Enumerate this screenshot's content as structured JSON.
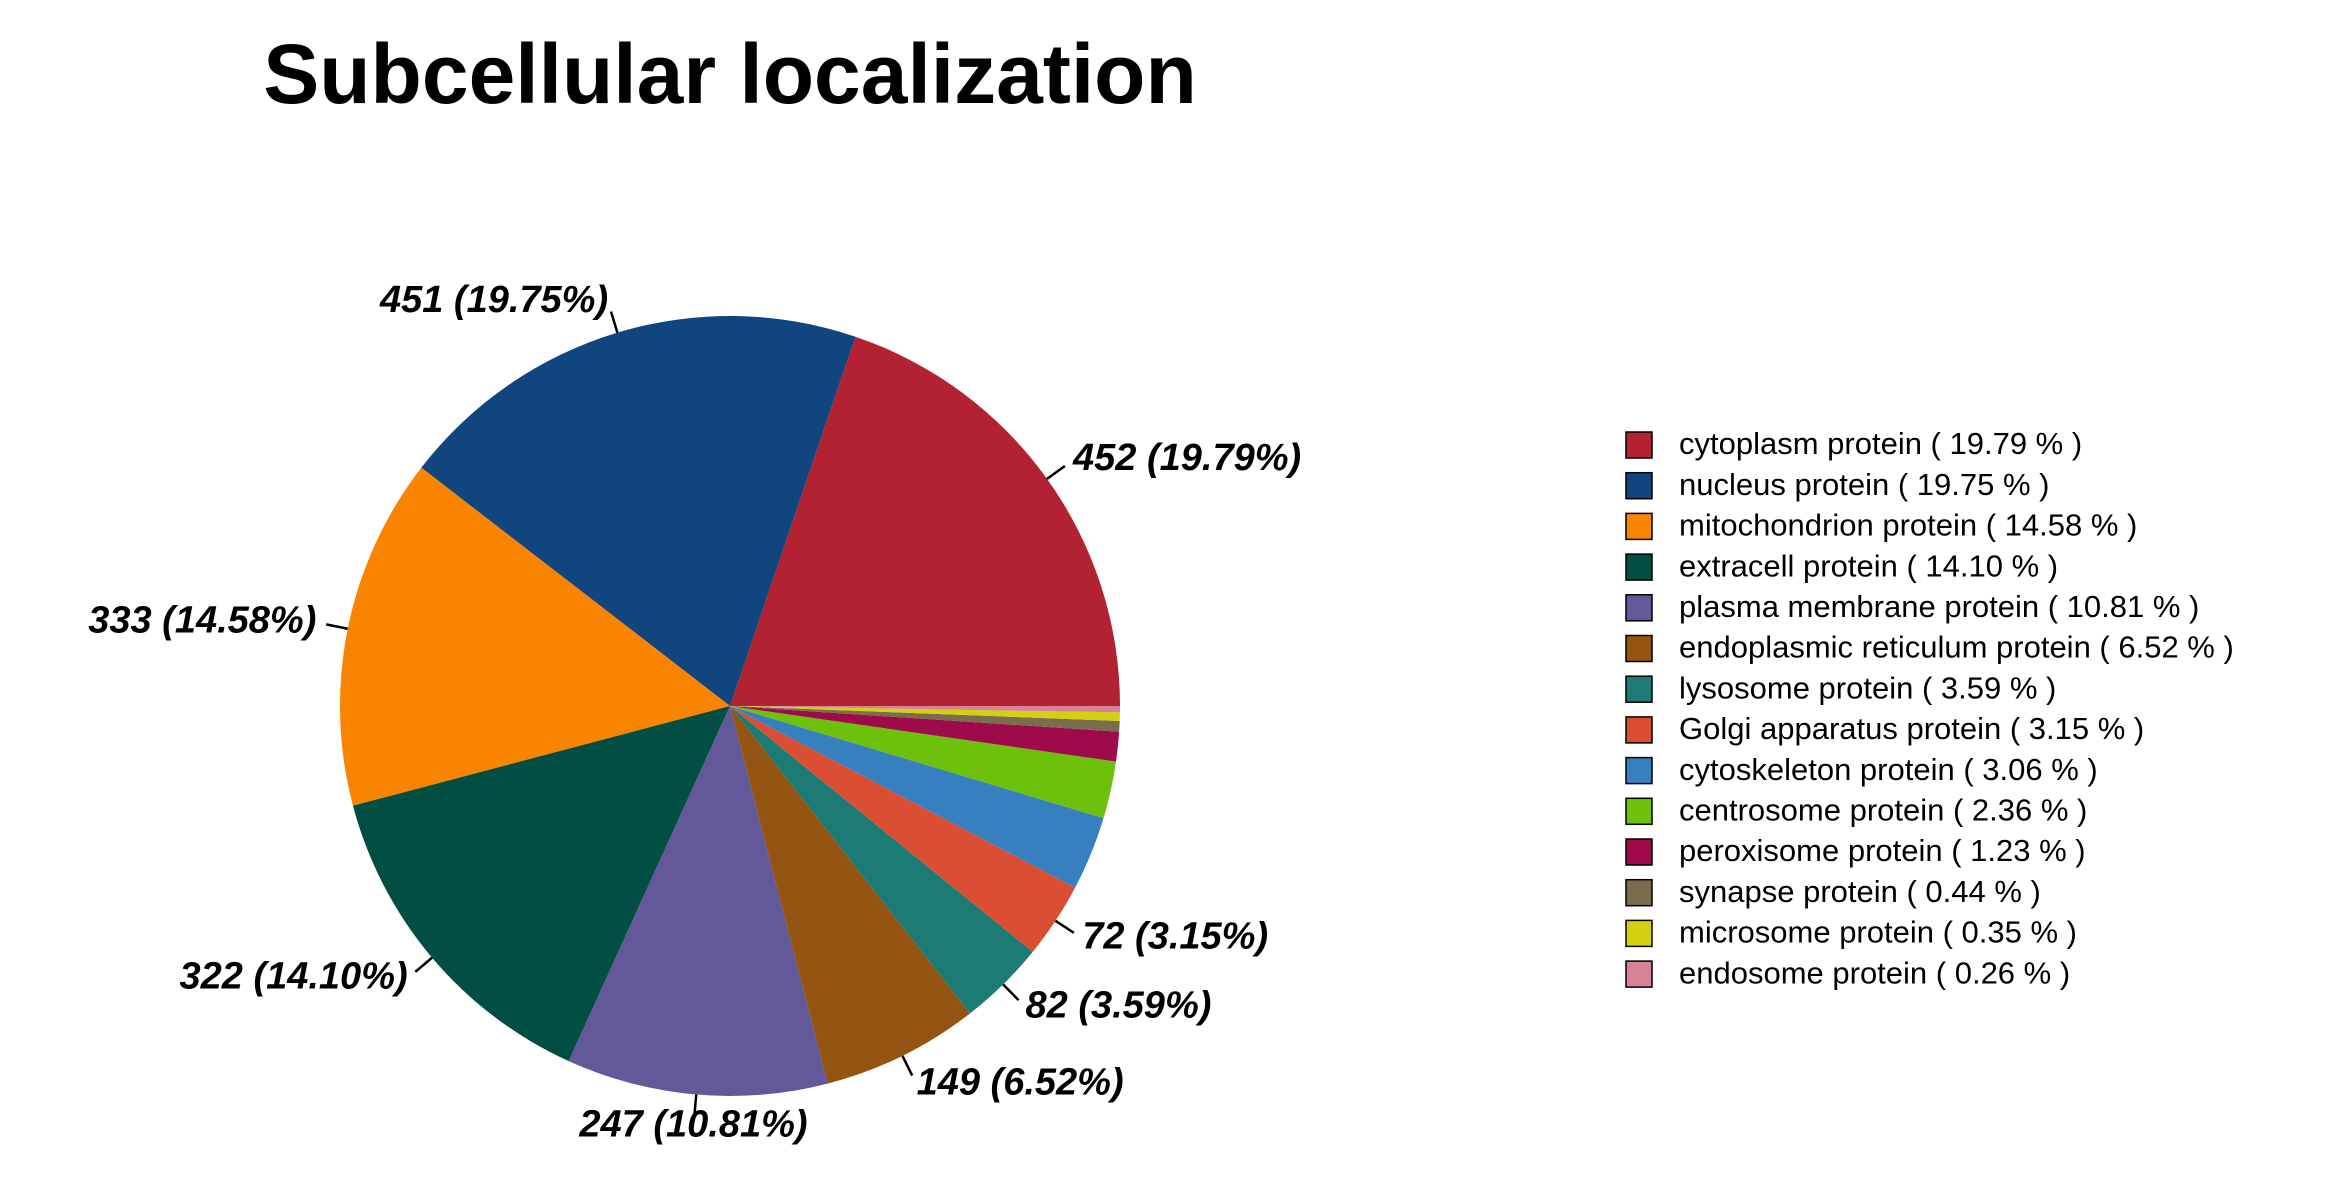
{
  "chart_data": {
    "type": "pie",
    "title": "Subcellular localization",
    "legend_position": "right",
    "start_angle_deg": 0,
    "direction": "counterclockwise",
    "slices": [
      {
        "name": "cytoplasm protein",
        "value": 452,
        "percent": 19.79,
        "color": "#B22232",
        "label": "452 (19.79%)",
        "legend": "cytoplasm protein  ( 19.79 % )"
      },
      {
        "name": "nucleus protein",
        "value": 451,
        "percent": 19.75,
        "color": "#10457E",
        "label": "451 (19.75%)",
        "legend": "nucleus protein  ( 19.75 % )"
      },
      {
        "name": "mitochondrion protein",
        "value": 333,
        "percent": 14.58,
        "color": "#F98400",
        "label": "333 (14.58%)",
        "legend": "mitochondrion protein  ( 14.58 % )"
      },
      {
        "name": "extracell protein",
        "value": 322,
        "percent": 14.1,
        "color": "#034E42",
        "label": "322 (14.10%)",
        "legend": "extracell protein  ( 14.10 % )"
      },
      {
        "name": "plasma membrane protein",
        "value": 247,
        "percent": 10.81,
        "color": "#62589A",
        "label": "247 (10.81%)",
        "legend": "plasma membrane protein  ( 10.81 % )"
      },
      {
        "name": "endoplasmic reticulum protein",
        "value": 149,
        "percent": 6.52,
        "color": "#935511",
        "label": "149 (6.52%)",
        "legend": "endoplasmic reticulum protein  ( 6.52 % )"
      },
      {
        "name": "lysosome protein",
        "value": 82,
        "percent": 3.59,
        "color": "#1C7B74",
        "label": "82 (3.59%)",
        "legend": "lysosome protein  ( 3.59 % )"
      },
      {
        "name": "Golgi apparatus protein",
        "value": 72,
        "percent": 3.15,
        "color": "#DA4E33",
        "label": "72 (3.15%)",
        "legend": "Golgi apparatus protein  ( 3.15 % )"
      },
      {
        "name": "cytoskeleton protein",
        "value": 70,
        "percent": 3.06,
        "color": "#3680C0",
        "label": "",
        "legend": "cytoskeleton protein  ( 3.06 % )"
      },
      {
        "name": "centrosome protein",
        "value": 54,
        "percent": 2.36,
        "color": "#6EC10A",
        "label": "",
        "legend": "centrosome protein  ( 2.36 % )"
      },
      {
        "name": "peroxisome protein",
        "value": 28,
        "percent": 1.23,
        "color": "#9E0A4A",
        "label": "",
        "legend": "peroxisome protein  ( 1.23 % )"
      },
      {
        "name": "synapse protein",
        "value": 10,
        "percent": 0.44,
        "color": "#7B6C4E",
        "label": "",
        "legend": "synapse protein  ( 0.44 % )"
      },
      {
        "name": "microsome protein",
        "value": 8,
        "percent": 0.35,
        "color": "#D3D10F",
        "label": "",
        "legend": "microsome protein  ( 0.35 % )"
      },
      {
        "name": "endosome protein",
        "value": 6,
        "percent": 0.26,
        "color": "#D78396",
        "label": "",
        "legend": "endosome protein  ( 0.26 % )"
      }
    ]
  }
}
